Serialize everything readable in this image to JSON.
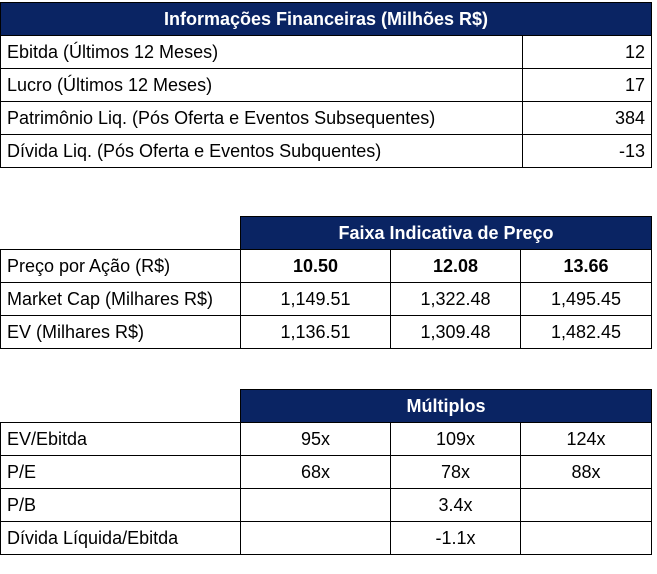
{
  "financial_info": {
    "title": "Informações Financeiras (Milhões R$)",
    "rows": [
      {
        "label": "Ebitda (Últimos 12 Meses)",
        "value": "12"
      },
      {
        "label": "Lucro (Últimos 12 Meses)",
        "value": "17"
      },
      {
        "label": "Patrimônio Liq. (Pós Oferta e Eventos Subsequentes)",
        "value": "384"
      },
      {
        "label": "Dívida Liq. (Pós Oferta e Eventos Subquentes)",
        "value": "-13"
      }
    ]
  },
  "price_range": {
    "title": "Faixa Indicativa de Preço",
    "rows": [
      {
        "label": "Preço por Ação (R$)",
        "values": [
          "10.50",
          "12.08",
          "13.66"
        ]
      },
      {
        "label": "Market Cap (Milhares R$)",
        "values": [
          "1,149.51",
          "1,322.48",
          "1,495.45"
        ]
      },
      {
        "label": "EV (Milhares R$)",
        "values": [
          "1,136.51",
          "1,309.48",
          "1,482.45"
        ]
      }
    ]
  },
  "multiples": {
    "title": "Múltiplos",
    "rows": [
      {
        "label": "EV/Ebitda",
        "values": [
          "95x",
          "109x",
          "124x"
        ]
      },
      {
        "label": "P/E",
        "values": [
          "68x",
          "78x",
          "88x"
        ]
      },
      {
        "label": "P/B",
        "values": [
          "",
          "3.4x",
          ""
        ]
      },
      {
        "label": "Dívida Líquida/Ebitda",
        "values": [
          "",
          "-1.1x",
          ""
        ]
      }
    ]
  },
  "colors": {
    "header_bg": "#0a2463",
    "header_text": "#ffffff"
  }
}
